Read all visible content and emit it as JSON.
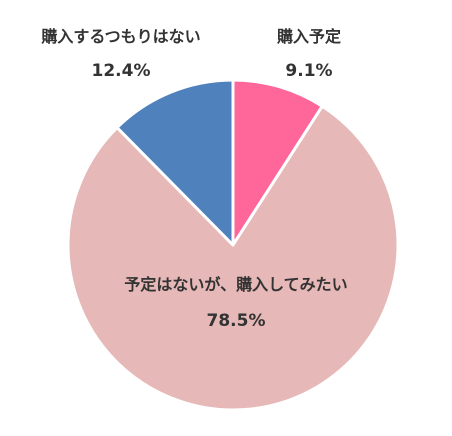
{
  "chart_data": {
    "type": "pie",
    "start_angle_deg": 0,
    "direction": "clockwise",
    "slices": [
      {
        "label": "購入予定",
        "value": 9.1,
        "value_label": "9.1%",
        "color": "#ff6699",
        "label_position": "outside"
      },
      {
        "label": "予定はないが、購入してみたい",
        "value": 78.5,
        "value_label": "78.5%",
        "color": "#e6b8b7",
        "label_position": "inside"
      },
      {
        "label": "購入するつもりはない",
        "value": 12.4,
        "value_label": "12.4%",
        "color": "#4f81bd",
        "label_position": "outside"
      }
    ]
  }
}
